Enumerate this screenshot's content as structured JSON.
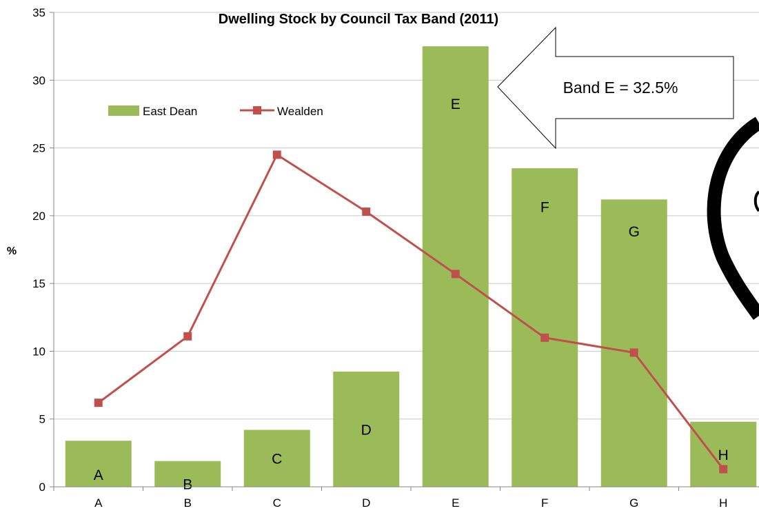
{
  "chart_data": {
    "type": "bar",
    "title": "Dwelling  Stock by Council Tax Band (2011)",
    "xlabel": "",
    "ylabel": "%",
    "ylim": [
      0,
      35
    ],
    "yticks": [
      0,
      5,
      10,
      15,
      20,
      25,
      30,
      35
    ],
    "categories": [
      "A",
      "B",
      "C",
      "D",
      "E",
      "F",
      "G",
      "H"
    ],
    "series": [
      {
        "name": "East Dean",
        "kind": "bar",
        "color": "#9bbb59",
        "values": [
          3.4,
          1.9,
          4.2,
          8.5,
          32.5,
          23.5,
          21.2,
          4.8
        ],
        "data_labels": [
          "A",
          "B",
          "C",
          "D",
          "E",
          "F",
          "G",
          "H"
        ]
      },
      {
        "name": "Wealden",
        "kind": "line",
        "color": "#c0504d",
        "values": [
          6.2,
          11.1,
          24.5,
          20.3,
          15.7,
          11.0,
          9.9,
          1.3
        ]
      }
    ],
    "grid": true,
    "legend": "top-left",
    "annotation": "Band E = 32.5%"
  }
}
